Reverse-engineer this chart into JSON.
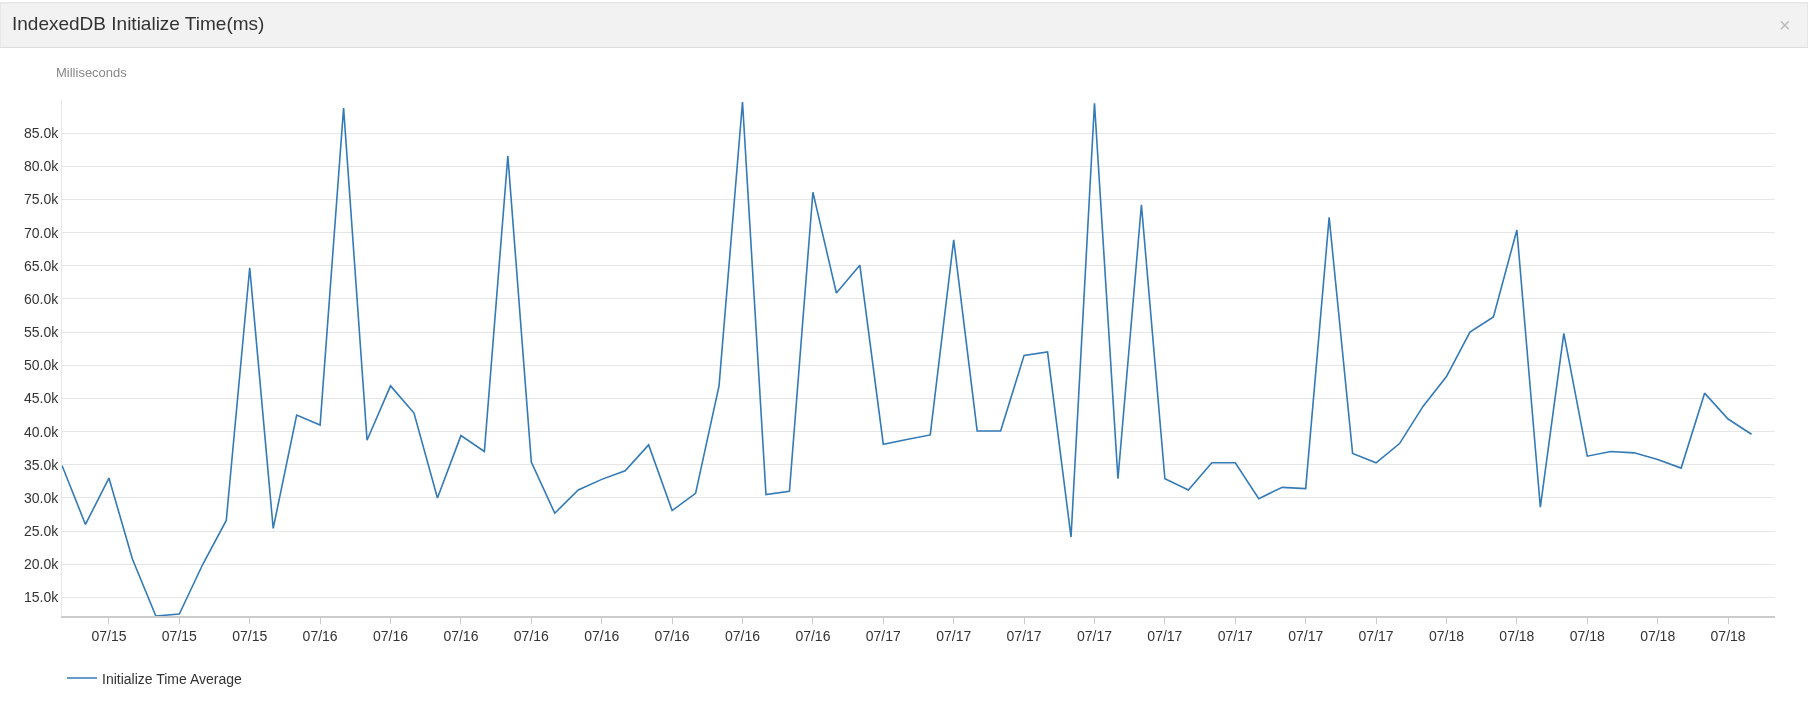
{
  "chart_data": {
    "type": "line",
    "title": "IndexedDB Initialize Time(ms)",
    "ylabel": "Milliseconds",
    "annotations": [
      "×"
    ],
    "categories": [
      null,
      null,
      "07/15",
      null,
      null,
      "07/15",
      null,
      null,
      "07/15",
      null,
      null,
      "07/16",
      null,
      null,
      "07/16",
      null,
      null,
      "07/16",
      null,
      null,
      "07/16",
      null,
      null,
      "07/16",
      null,
      null,
      "07/16",
      null,
      null,
      "07/16",
      null,
      null,
      "07/16",
      null,
      null,
      "07/17",
      null,
      null,
      "07/17",
      null,
      null,
      "07/17",
      null,
      null,
      "07/17",
      null,
      null,
      "07/17",
      null,
      null,
      "07/17",
      null,
      null,
      "07/17",
      null,
      null,
      "07/17",
      null,
      null,
      "07/18",
      null,
      null,
      "07/18",
      null,
      null,
      "07/18",
      null,
      null,
      "07/18",
      null,
      null,
      "07/18",
      null
    ],
    "series": [
      {
        "name": "Initialize Time Average",
        "color": "#337ab7",
        "values": [
          34900,
          26000,
          33000,
          20800,
          12200,
          12500,
          20000,
          26600,
          64700,
          25400,
          42500,
          41000,
          88800,
          38700,
          46900,
          42800,
          30000,
          39400,
          37000,
          81600,
          35400,
          27700,
          31200,
          32800,
          34100,
          38000,
          28100,
          30700,
          46900,
          89700,
          30500,
          31000,
          76100,
          60900,
          65100,
          38100,
          38800,
          39500,
          68900,
          40100,
          40100,
          51500,
          52000,
          24100,
          89500,
          32900,
          74200,
          32900,
          31200,
          35300,
          35300,
          29900,
          31600,
          31400,
          72300,
          36700,
          35300,
          38200,
          43800,
          48300,
          55000,
          57300,
          70400,
          28600,
          54800,
          36300,
          37000,
          36800,
          35800,
          34500,
          45800,
          41900,
          39600
        ]
      }
    ],
    "ylim": [
      12200,
      90000
    ],
    "yticks": [
      {
        "value": 15000,
        "label": "15.0k"
      },
      {
        "value": 20000,
        "label": "20.0k"
      },
      {
        "value": 25000,
        "label": "25.0k"
      },
      {
        "value": 30000,
        "label": "30.0k"
      },
      {
        "value": 35000,
        "label": "35.0k"
      },
      {
        "value": 40000,
        "label": "40.0k"
      },
      {
        "value": 45000,
        "label": "45.0k"
      },
      {
        "value": 50000,
        "label": "50.0k"
      },
      {
        "value": 55000,
        "label": "55.0k"
      },
      {
        "value": 60000,
        "label": "60.0k"
      },
      {
        "value": 65000,
        "label": "65.0k"
      },
      {
        "value": 70000,
        "label": "70.0k"
      },
      {
        "value": 75000,
        "label": "75.0k"
      },
      {
        "value": 80000,
        "label": "80.0k"
      },
      {
        "value": 85000,
        "label": "85.0k"
      }
    ],
    "grid": "y",
    "legend": "bottom left",
    "marker": "none",
    "line_style": "solid"
  }
}
